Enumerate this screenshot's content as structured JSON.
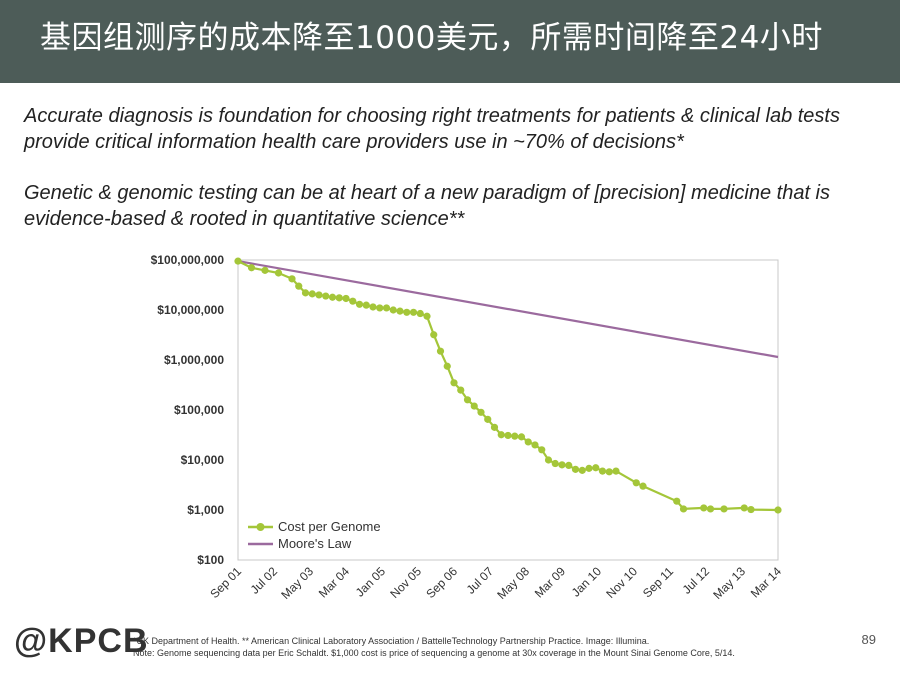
{
  "slide": {
    "title": "基因组测序的成本降至1000美元，所需时间降至24小时",
    "paragraph1": "Accurate diagnosis is foundation for choosing right treatments for patients & clinical lab tests provide critical information health care providers use in ~70% of decisions*",
    "paragraph2": "Genetic & genomic testing can be at heart of a new paradigm of [precision] medicine that is evidence-based & rooted in quantitative science**",
    "logo": "@KPCB",
    "footnote1": "*UK Department of Health. ** American Clinical Laboratory Association / BattelleTechnology Partnership Practice. Image: Illumina.",
    "footnote2": "Note: Genome sequencing data per Eric Schaldt. $1,000 cost is price of sequencing a genome at 30x coverage in the Mount Sinai Genome Core, 5/14.",
    "page_number": "89"
  },
  "chart_data": {
    "type": "line",
    "y_scale": "log",
    "ylim": [
      100,
      100000000
    ],
    "y_ticks": [
      100,
      1000,
      10000,
      100000,
      1000000,
      10000000,
      100000000
    ],
    "y_tick_labels": [
      "$100",
      "$1,000",
      "$10,000",
      "$100,000",
      "$1,000,000",
      "$10,000,000",
      "$100,000,000"
    ],
    "x_tick_labels": [
      "Sep 01",
      "Jul 02",
      "May 03",
      "Mar 04",
      "Jan 05",
      "Nov 05",
      "Sep 06",
      "Jul 07",
      "May 08",
      "Mar 09",
      "Jan 10",
      "Nov 10",
      "Sep 11",
      "Jul 12",
      "May 13",
      "Mar 14"
    ],
    "grid": false,
    "legend_position": "bottom-left",
    "colors": {
      "cost": "#a4c639",
      "moore": "#9b6a9e",
      "frame": "#c8c8c8"
    },
    "series": [
      {
        "name": "Cost per Genome",
        "x": [
          0,
          1,
          2,
          3,
          4,
          4.5,
          5,
          5.5,
          6,
          6.5,
          7,
          7.5,
          8,
          8.5,
          9,
          9.5,
          10,
          10.5,
          11,
          11.5,
          12,
          12.5,
          13,
          13.5,
          14,
          14.5,
          15,
          15.5,
          16,
          16.5,
          17,
          17.5,
          18,
          18.5,
          19,
          19.5,
          20,
          20.5,
          21,
          21.5,
          22,
          22.5,
          23,
          23.5,
          24,
          24.5,
          25,
          25.5,
          26,
          26.5,
          27,
          27.5,
          28,
          29.5,
          30,
          32.5,
          33,
          34.5,
          35,
          36,
          37.5,
          38,
          40
        ],
        "values": [
          95000000,
          70000000,
          62000000,
          55000000,
          42000000,
          30000000,
          22000000,
          21000000,
          20000000,
          19000000,
          18000000,
          17500000,
          17000000,
          15000000,
          13000000,
          12500000,
          11500000,
          11000000,
          11000000,
          10000000,
          9500000,
          9000000,
          9000000,
          8500000,
          7500000,
          3200000,
          1500000,
          750000,
          350000,
          250000,
          160000,
          120000,
          90000,
          65000,
          45000,
          32000,
          31000,
          30000,
          29000,
          23000,
          20000,
          16000,
          10000,
          8500,
          8000,
          7800,
          6500,
          6200,
          6800,
          7000,
          6000,
          5800,
          6000,
          3500,
          3000,
          1500,
          1050,
          1100,
          1050,
          1050,
          1100,
          1020,
          1000
        ]
      },
      {
        "name": "Moore's Law",
        "x": [
          0,
          40
        ],
        "values": [
          95000000,
          1150000
        ]
      }
    ]
  }
}
